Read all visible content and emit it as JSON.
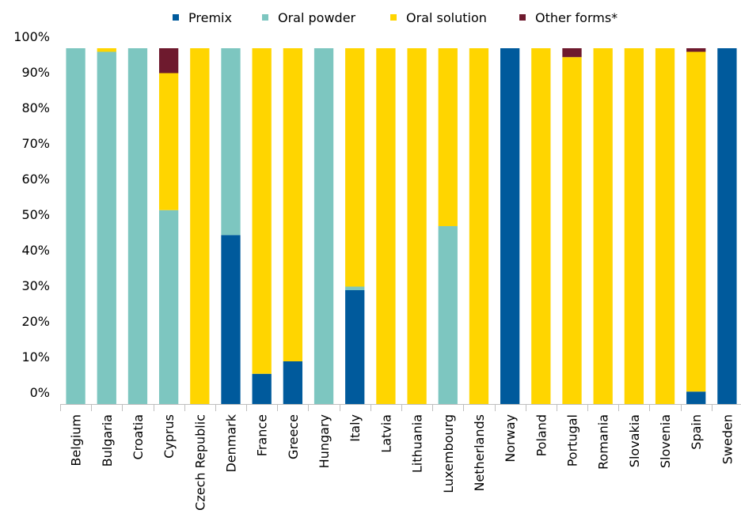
{
  "chart_data": {
    "type": "bar",
    "stacked": true,
    "percent": true,
    "categories": [
      "Belgium",
      "Bulgaria",
      "Croatia",
      "Cyprus",
      "Czech Republic",
      "Denmark",
      "France",
      "Greece",
      "Hungary",
      "Italy",
      "Latvia",
      "Lithuania",
      "Luxembourg",
      "Netherlands",
      "Norway",
      "Poland",
      "Portugal",
      "Romania",
      "Slovakia",
      "Slovenia",
      "Spain",
      "Sweden"
    ],
    "series": [
      {
        "name": "Premix",
        "color": "#005a9c",
        "values": [
          0,
          0,
          0,
          0,
          0,
          47.5,
          8.5,
          12,
          0,
          32,
          0,
          0,
          0,
          0,
          100,
          0,
          0,
          0,
          0,
          0,
          3.5,
          100
        ]
      },
      {
        "name": "Oral powder",
        "color": "#7dc6c0",
        "values": [
          100,
          99,
          100,
          54.5,
          0,
          52.5,
          0,
          0,
          100,
          1,
          0,
          0,
          50,
          0,
          0,
          0,
          0,
          0,
          0,
          0,
          0,
          0
        ]
      },
      {
        "name": "Oral solution",
        "color": "#ffd500",
        "values": [
          0,
          1,
          0,
          38.5,
          100,
          0,
          91.5,
          88,
          0,
          67,
          100,
          100,
          50,
          100,
          0,
          100,
          97.5,
          100,
          100,
          100,
          95.5,
          0
        ]
      },
      {
        "name": "Other forms*",
        "color": "#6e1a2e",
        "values": [
          0,
          0,
          0,
          7,
          0,
          0,
          0,
          0,
          0,
          0,
          0,
          0,
          0,
          0,
          0,
          0,
          2.5,
          0,
          0,
          0,
          1,
          0
        ]
      }
    ],
    "yticks": [
      "0%",
      "10%",
      "20%",
      "30%",
      "40%",
      "50%",
      "60%",
      "70%",
      "80%",
      "90%",
      "100%"
    ],
    "ylim": [
      0,
      100
    ],
    "grid": false,
    "legend_position": "top"
  }
}
